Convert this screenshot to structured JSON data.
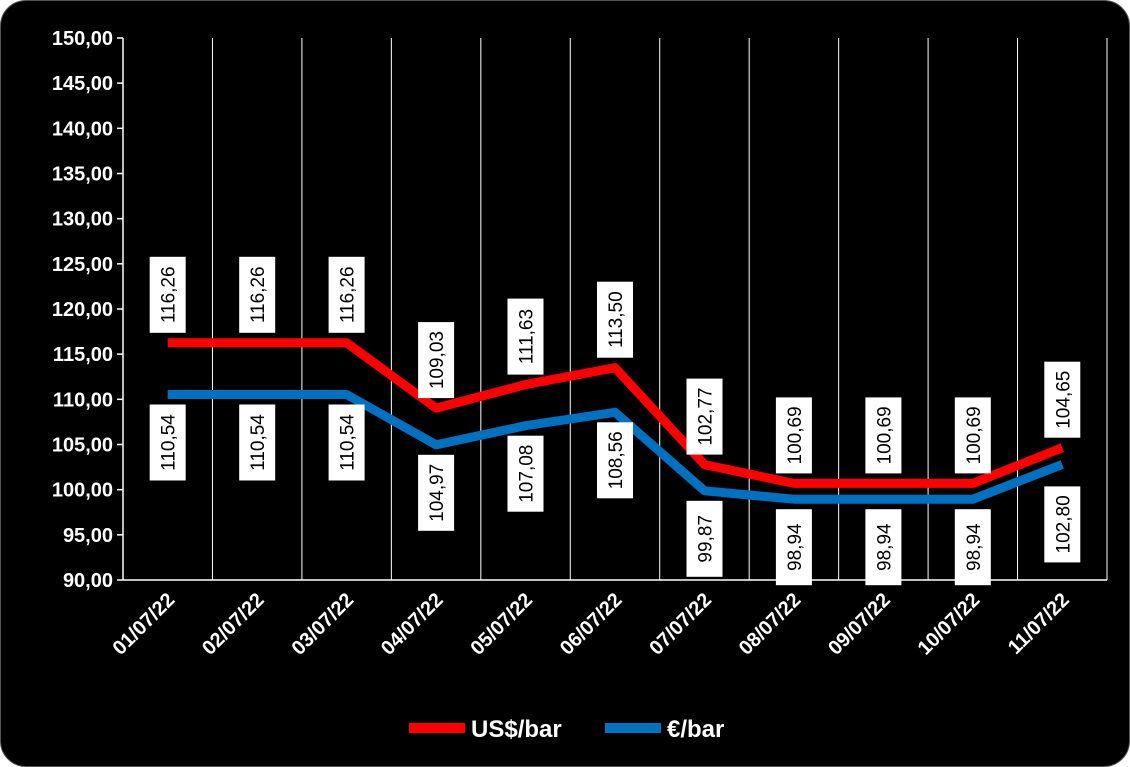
{
  "chart_data": {
    "type": "line",
    "x": [
      "01/07/22",
      "02/07/22",
      "03/07/22",
      "04/07/22",
      "05/07/22",
      "06/07/22",
      "07/07/22",
      "08/07/22",
      "09/07/22",
      "10/07/22",
      "11/07/22"
    ],
    "series": [
      {
        "name": "US$/bar",
        "color": "#ff0000",
        "values": [
          116.26,
          116.26,
          116.26,
          109.03,
          111.63,
          113.5,
          102.77,
          100.69,
          100.69,
          100.69,
          104.65
        ],
        "labels": [
          "116,26",
          "116,26",
          "116,26",
          "109,03",
          "111,63",
          "113,50",
          "102,77",
          "100,69",
          "100,69",
          "100,69",
          "104,65"
        ]
      },
      {
        "name": "€/bar",
        "color": "#0070c0",
        "values": [
          110.54,
          110.54,
          110.54,
          104.97,
          107.08,
          108.56,
          99.87,
          98.94,
          98.94,
          98.94,
          102.8
        ],
        "labels": [
          "110,54",
          "110,54",
          "110,54",
          "104,97",
          "107,08",
          "108,56",
          "99,87",
          "98,94",
          "98,94",
          "98,94",
          "102,80"
        ]
      }
    ],
    "ylim": [
      90,
      150
    ],
    "yticks": [
      "90,00",
      "95,00",
      "100,00",
      "105,00",
      "110,00",
      "115,00",
      "120,00",
      "125,00",
      "130,00",
      "135,00",
      "140,00",
      "145,00",
      "150,00"
    ],
    "grid": "vertical",
    "legend": "bottom",
    "background": "#000000"
  }
}
